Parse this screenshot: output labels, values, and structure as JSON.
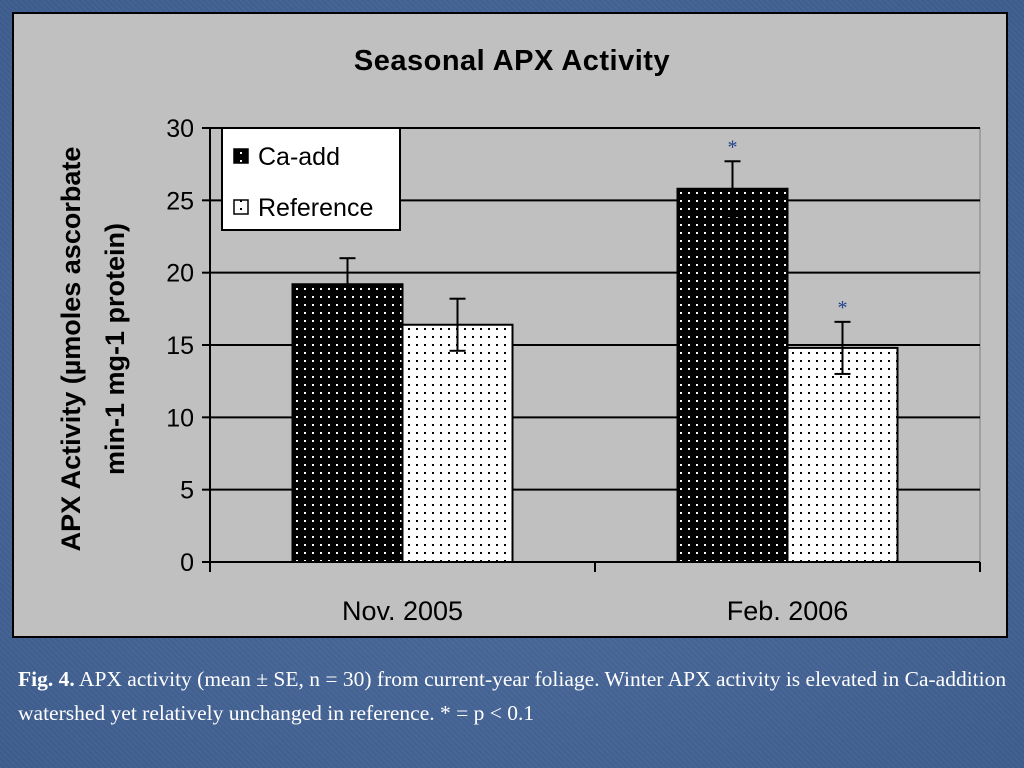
{
  "chart_data": {
    "type": "bar",
    "title": "Seasonal APX Activity",
    "ylabel_lines": [
      "APX Activity (µmoles ascorbate",
      "min-1 mg-1 protein)"
    ],
    "xlabel": "",
    "categories": [
      "Nov. 2005",
      "Feb. 2006"
    ],
    "series": [
      {
        "name": "Ca-add",
        "values": [
          19.2,
          25.8
        ],
        "errors": [
          1.8,
          1.9
        ],
        "significance": [
          "",
          "*"
        ]
      },
      {
        "name": "Reference",
        "values": [
          16.4,
          14.8
        ],
        "errors": [
          1.8,
          1.8
        ],
        "significance": [
          "",
          "*"
        ]
      }
    ],
    "ylim": [
      0,
      30
    ],
    "yticks": [
      "0",
      "5",
      "10",
      "15",
      "20",
      "25",
      "30"
    ],
    "grid": true,
    "legend_position": "top-left",
    "colors": {
      "plot_background": "#c0c0c0",
      "ca_add_fill": "#000000",
      "reference_fill": "#ffffff",
      "significance_marker": "#1f3f8f"
    }
  },
  "caption": {
    "label": "Fig. 4.",
    "text": "  APX activity (mean ± SE, n = 30) from current-year foliage. Winter APX activity is elevated in Ca-addition watershed yet relatively unchanged in reference.  * = p < 0.1"
  },
  "background_color": "#44659a"
}
